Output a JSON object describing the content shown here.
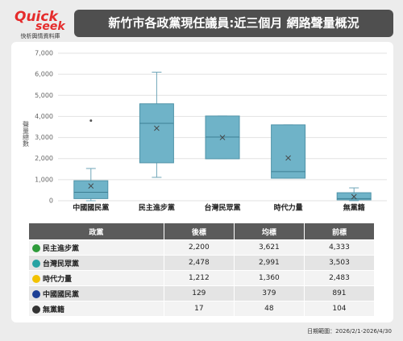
{
  "header": {
    "logo_top": "Quick",
    "logo_bottom": "seek",
    "logo_caption": "快析輿情資料庫",
    "title": "新竹市各政黨現任議員:近三個月 網路聲量概況"
  },
  "chart_data": {
    "type": "box",
    "y_label": "聲量總數",
    "categories": [
      "中國國民黨",
      "民主進步黨",
      "台灣民眾黨",
      "時代力量",
      "無黨籍"
    ],
    "color": "#6fb3c8",
    "boxes": [
      {
        "min": 0,
        "q1": 100,
        "median": 400,
        "q3": 950,
        "max": 1530,
        "mean": 700,
        "outliers": [
          3800
        ]
      },
      {
        "min": 1110,
        "q1": 1800,
        "median": 3670,
        "q3": 4600,
        "max": 6100,
        "mean": 3440,
        "outliers": []
      },
      {
        "min": 1990,
        "q1": 1990,
        "median": 3020,
        "q3": 4020,
        "max": 4020,
        "mean": 3000,
        "outliers": []
      },
      {
        "min": 1070,
        "q1": 1070,
        "median": 1380,
        "q3": 3600,
        "max": 3600,
        "mean": 2030,
        "outliers": []
      },
      {
        "min": 0,
        "q1": 40,
        "median": 100,
        "q3": 380,
        "max": 610,
        "mean": 190,
        "outliers": []
      }
    ],
    "ylim": [
      0,
      7000
    ],
    "yticks": [
      0,
      {
        "value": 1000,
        "label": "1,000"
      },
      {
        "value": 2000,
        "label": "2,000"
      },
      {
        "value": 3000,
        "label": "3,000"
      },
      {
        "value": 4000,
        "label": "4,000"
      },
      {
        "value": 5000,
        "label": "5,000"
      },
      {
        "value": 6000,
        "label": "6,000"
      },
      {
        "value": 7000,
        "label": "7,000"
      }
    ],
    "grid": true
  },
  "table": {
    "columns": [
      "政黨",
      "後標",
      "均標",
      "前標"
    ],
    "rows": [
      [
        "民主進步黨",
        "2,200",
        "3,621",
        "4,333"
      ],
      [
        "台灣民眾黨",
        "2,478",
        "2,991",
        "3,503"
      ],
      [
        "時代力量",
        "1,212",
        "1,360",
        "2,483"
      ],
      [
        "中國國民黨",
        "129",
        "379",
        "891"
      ],
      [
        "無黨籍",
        "17",
        "48",
        "104"
      ]
    ]
  },
  "footer": "日期範圍：2026/2/1-2026/4/30"
}
